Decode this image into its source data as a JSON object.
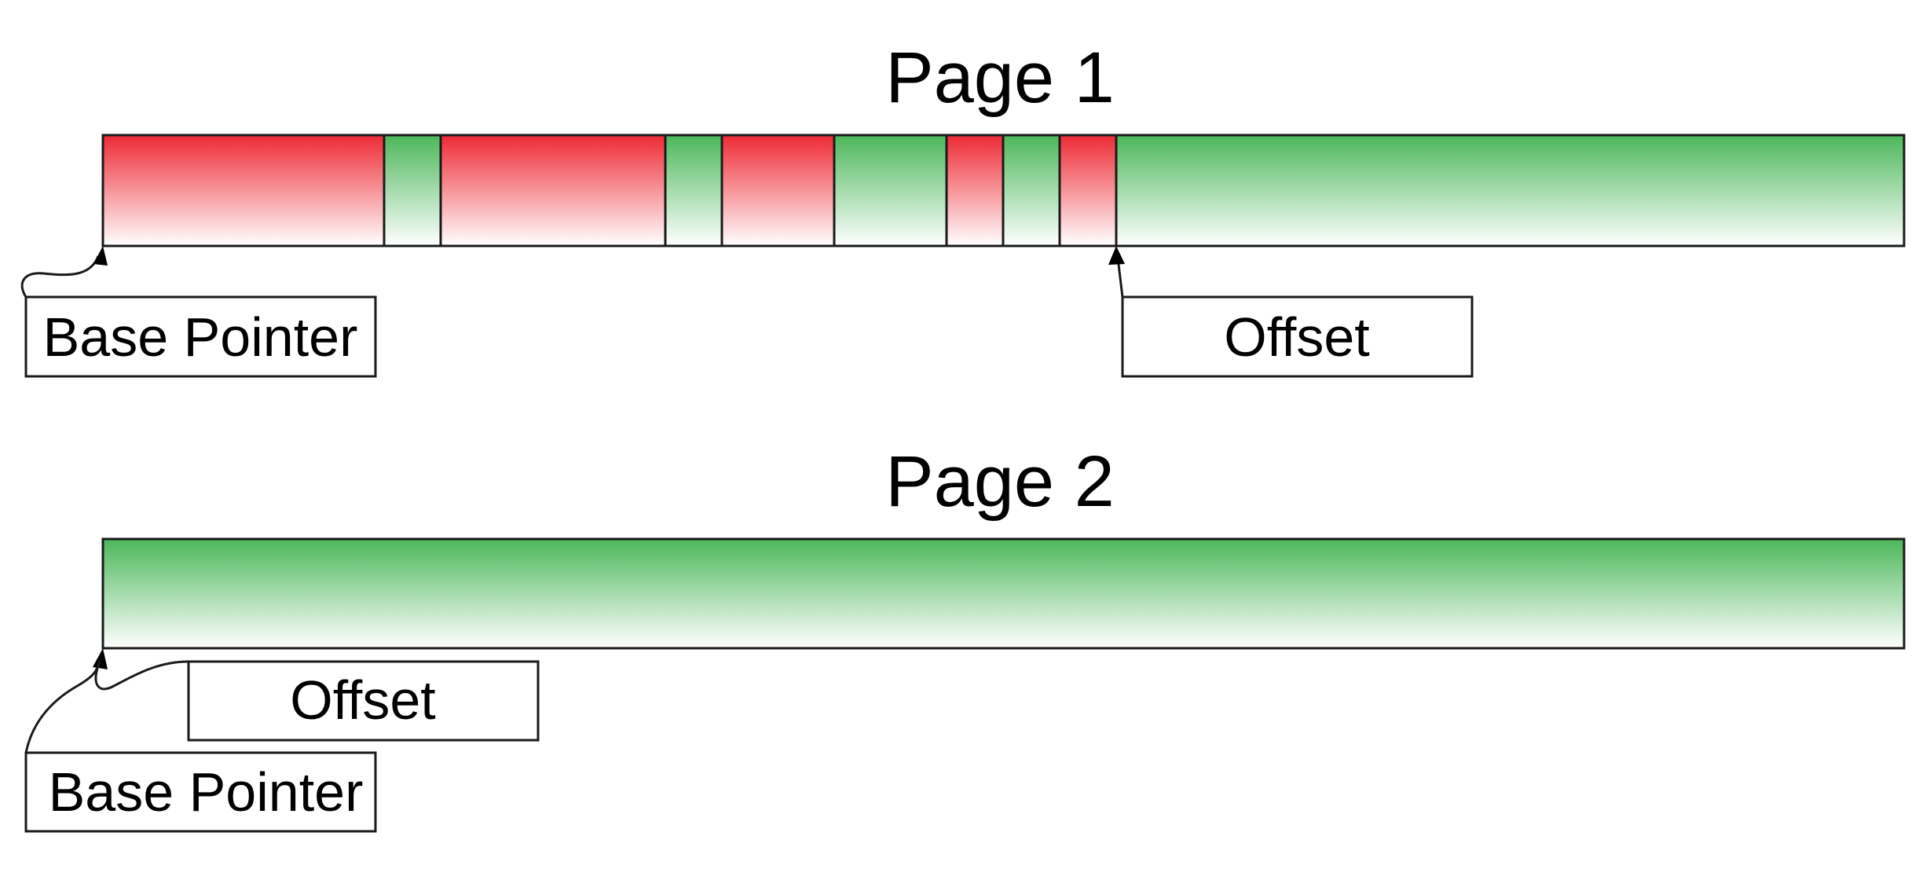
{
  "colors": {
    "used": "#ee2a35",
    "free": "#4cb75a",
    "fade": "#ffffff",
    "stroke": "#1a1a1a"
  },
  "pages": [
    {
      "title": "Page 1",
      "segments": [
        "used",
        "free",
        "used",
        "free",
        "used",
        "free",
        "used",
        "free",
        "used",
        "free"
      ],
      "labels": {
        "base_pointer": "Base Pointer",
        "offset": "Offset"
      }
    },
    {
      "title": "Page 2",
      "segments": [
        "free"
      ],
      "labels": {
        "base_pointer": "Base Pointer",
        "offset": "Offset"
      }
    }
  ]
}
